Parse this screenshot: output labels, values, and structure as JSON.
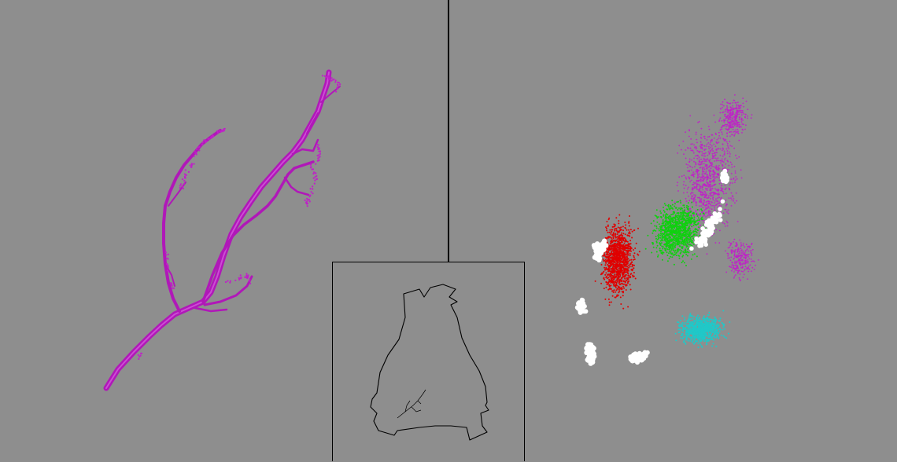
{
  "colors": {
    "background": "#8e8e8e",
    "divider": "#000000",
    "neuron": "#c020c8",
    "cluster_red": "#e00000",
    "cluster_green": "#10d010",
    "cluster_magenta": "#c020c8",
    "cluster_cyan": "#20c8c8",
    "cluster_white": "#ffffff",
    "outline": "#000000"
  },
  "views": {
    "left": {
      "content": "neuron-skeleton-3d-view"
    },
    "inset": {
      "content": "brain-outline-overview"
    },
    "right": {
      "content": "synapse-point-cloud-view"
    }
  }
}
